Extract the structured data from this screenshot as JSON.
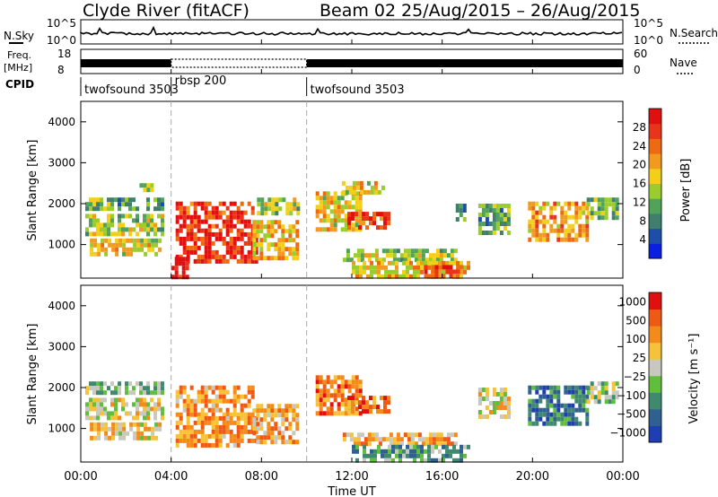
{
  "header": {
    "title": "Clyde River (fitACF)",
    "beam": "Beam 02",
    "date_range": "25/Aug/2015 – 26/Aug/2015"
  },
  "nsky_panel": {
    "left_label": "N.Sky",
    "right_label": "N.Search",
    "tick_top": "10^5",
    "tick_bottom": "10^0",
    "right_tick_top": "10^5",
    "right_tick_bottom": "10^0"
  },
  "freq_panel": {
    "left_label": "Freq.",
    "left_unit": "[MHz]",
    "tick_top": "18",
    "tick_bottom": "8",
    "right_label": "Nave",
    "right_tick_top": "60",
    "right_tick_bottom": "0"
  },
  "cpid": {
    "label": "CPID",
    "segments": [
      {
        "name": "twofsound 3503",
        "start": 0,
        "end": 4
      },
      {
        "name": "rbsp 200",
        "start": 4,
        "end": 10
      },
      {
        "name": "twofsound 3503",
        "start": 10,
        "end": 24
      }
    ]
  },
  "x_axis": {
    "label": "Time UT",
    "ticks": [
      "00:00",
      "04:00",
      "08:00",
      "12:00",
      "16:00",
      "20:00",
      "00:00"
    ],
    "range_hours": [
      0,
      24
    ],
    "dashed_markers_hours": [
      4,
      10
    ]
  },
  "chart_data": [
    {
      "type": "heatmap",
      "quantity": "Power",
      "ylabel": "Slant Range [km]",
      "yticks": [
        1000,
        2000,
        3000,
        4000
      ],
      "ylim": [
        180,
        4500
      ],
      "colorbar": {
        "label": "Power [dB]",
        "ticks": [
          "4",
          "8",
          "12",
          "16",
          "20",
          "24",
          "28"
        ],
        "colors": [
          "#0a1fe0",
          "#1e4fa8",
          "#3f7f6e",
          "#52a35a",
          "#9acc2e",
          "#f2cf18",
          "#f29a1e",
          "#ee6a12",
          "#e8341a",
          "#e01010"
        ]
      },
      "regions": [
        {
          "t": [
            0.2,
            3.6
          ],
          "r": [
            1850,
            2150
          ],
          "level": 0.35
        },
        {
          "t": [
            0.2,
            3.6
          ],
          "r": [
            1300,
            1750
          ],
          "level": 0.45
        },
        {
          "t": [
            0.4,
            3.5
          ],
          "r": [
            800,
            1150
          ],
          "level": 0.55
        },
        {
          "t": [
            2.6,
            3.2
          ],
          "r": [
            2300,
            2500
          ],
          "level": 0.45
        },
        {
          "t": [
            4.2,
            7.6
          ],
          "r": [
            1350,
            2050
          ],
          "level": 0.85
        },
        {
          "t": [
            4.2,
            7.8
          ],
          "r": [
            600,
            1300
          ],
          "level": 0.9
        },
        {
          "t": [
            4.0,
            4.7
          ],
          "r": [
            180,
            700
          ],
          "level": 0.95
        },
        {
          "t": [
            7.6,
            9.6
          ],
          "r": [
            700,
            1600
          ],
          "level": 0.6
        },
        {
          "t": [
            7.8,
            9.6
          ],
          "r": [
            1800,
            2150
          ],
          "level": 0.45
        },
        {
          "t": [
            10.4,
            12.4
          ],
          "r": [
            1400,
            2300
          ],
          "level": 0.55
        },
        {
          "t": [
            11.8,
            13.7
          ],
          "r": [
            1400,
            1800
          ],
          "level": 0.85
        },
        {
          "t": [
            11.4,
            13.4
          ],
          "r": [
            2250,
            2550
          ],
          "level": 0.55
        },
        {
          "t": [
            11.6,
            16.6
          ],
          "r": [
            650,
            900
          ],
          "level": 0.45
        },
        {
          "t": [
            12.0,
            17.2
          ],
          "r": [
            180,
            600
          ],
          "level": 0.6
        },
        {
          "t": [
            15.2,
            16.8
          ],
          "r": [
            180,
            500
          ],
          "level": 0.9
        },
        {
          "t": [
            16.6,
            17.0
          ],
          "r": [
            1600,
            2000
          ],
          "level": 0.3
        },
        {
          "t": [
            17.6,
            19.0
          ],
          "r": [
            1300,
            2000
          ],
          "level": 0.35
        },
        {
          "t": [
            19.8,
            22.4
          ],
          "r": [
            1100,
            2050
          ],
          "level": 0.65
        },
        {
          "t": [
            22.4,
            23.8
          ],
          "r": [
            1700,
            2150
          ],
          "level": 0.4
        }
      ]
    },
    {
      "type": "heatmap",
      "quantity": "Velocity",
      "ylabel": "Slant Range [km]",
      "yticks": [
        1000,
        2000,
        3000,
        4000
      ],
      "ylim": [
        180,
        4500
      ],
      "colorbar": {
        "label": "Velocity [m s⁻¹]",
        "ticks": [
          "1000",
          "500",
          "100",
          "25",
          "−25",
          "−100",
          "−500",
          "−1000"
        ],
        "colors": [
          "#1e3fb4",
          "#2e6090",
          "#3f8a6e",
          "#5fbf3a",
          "#c8c8c0",
          "#f5c23a",
          "#f28a1c",
          "#ee5a14",
          "#e01010"
        ]
      },
      "regions": [
        {
          "t": [
            0.2,
            3.6
          ],
          "r": [
            1850,
            2150
          ],
          "level": 0.4
        },
        {
          "t": [
            0.2,
            3.6
          ],
          "r": [
            1300,
            1750
          ],
          "level": 0.55
        },
        {
          "t": [
            0.4,
            3.5
          ],
          "r": [
            800,
            1150
          ],
          "level": 0.6
        },
        {
          "t": [
            4.2,
            7.6
          ],
          "r": [
            1350,
            2050
          ],
          "level": 0.7
        },
        {
          "t": [
            4.2,
            7.8
          ],
          "r": [
            600,
            1300
          ],
          "level": 0.72
        },
        {
          "t": [
            7.6,
            9.6
          ],
          "r": [
            700,
            1600
          ],
          "level": 0.68
        },
        {
          "t": [
            10.4,
            12.4
          ],
          "r": [
            1400,
            2300
          ],
          "level": 0.75
        },
        {
          "t": [
            11.8,
            13.7
          ],
          "r": [
            1400,
            1800
          ],
          "level": 0.8
        },
        {
          "t": [
            11.6,
            16.6
          ],
          "r": [
            650,
            900
          ],
          "level": 0.66
        },
        {
          "t": [
            12.0,
            17.2
          ],
          "r": [
            180,
            600
          ],
          "level": 0.3
        },
        {
          "t": [
            17.6,
            19.0
          ],
          "r": [
            1300,
            2000
          ],
          "level": 0.55
        },
        {
          "t": [
            19.8,
            22.4
          ],
          "r": [
            1100,
            2050
          ],
          "level": 0.2
        },
        {
          "t": [
            22.4,
            23.8
          ],
          "r": [
            1700,
            2150
          ],
          "level": 0.45
        }
      ]
    }
  ]
}
